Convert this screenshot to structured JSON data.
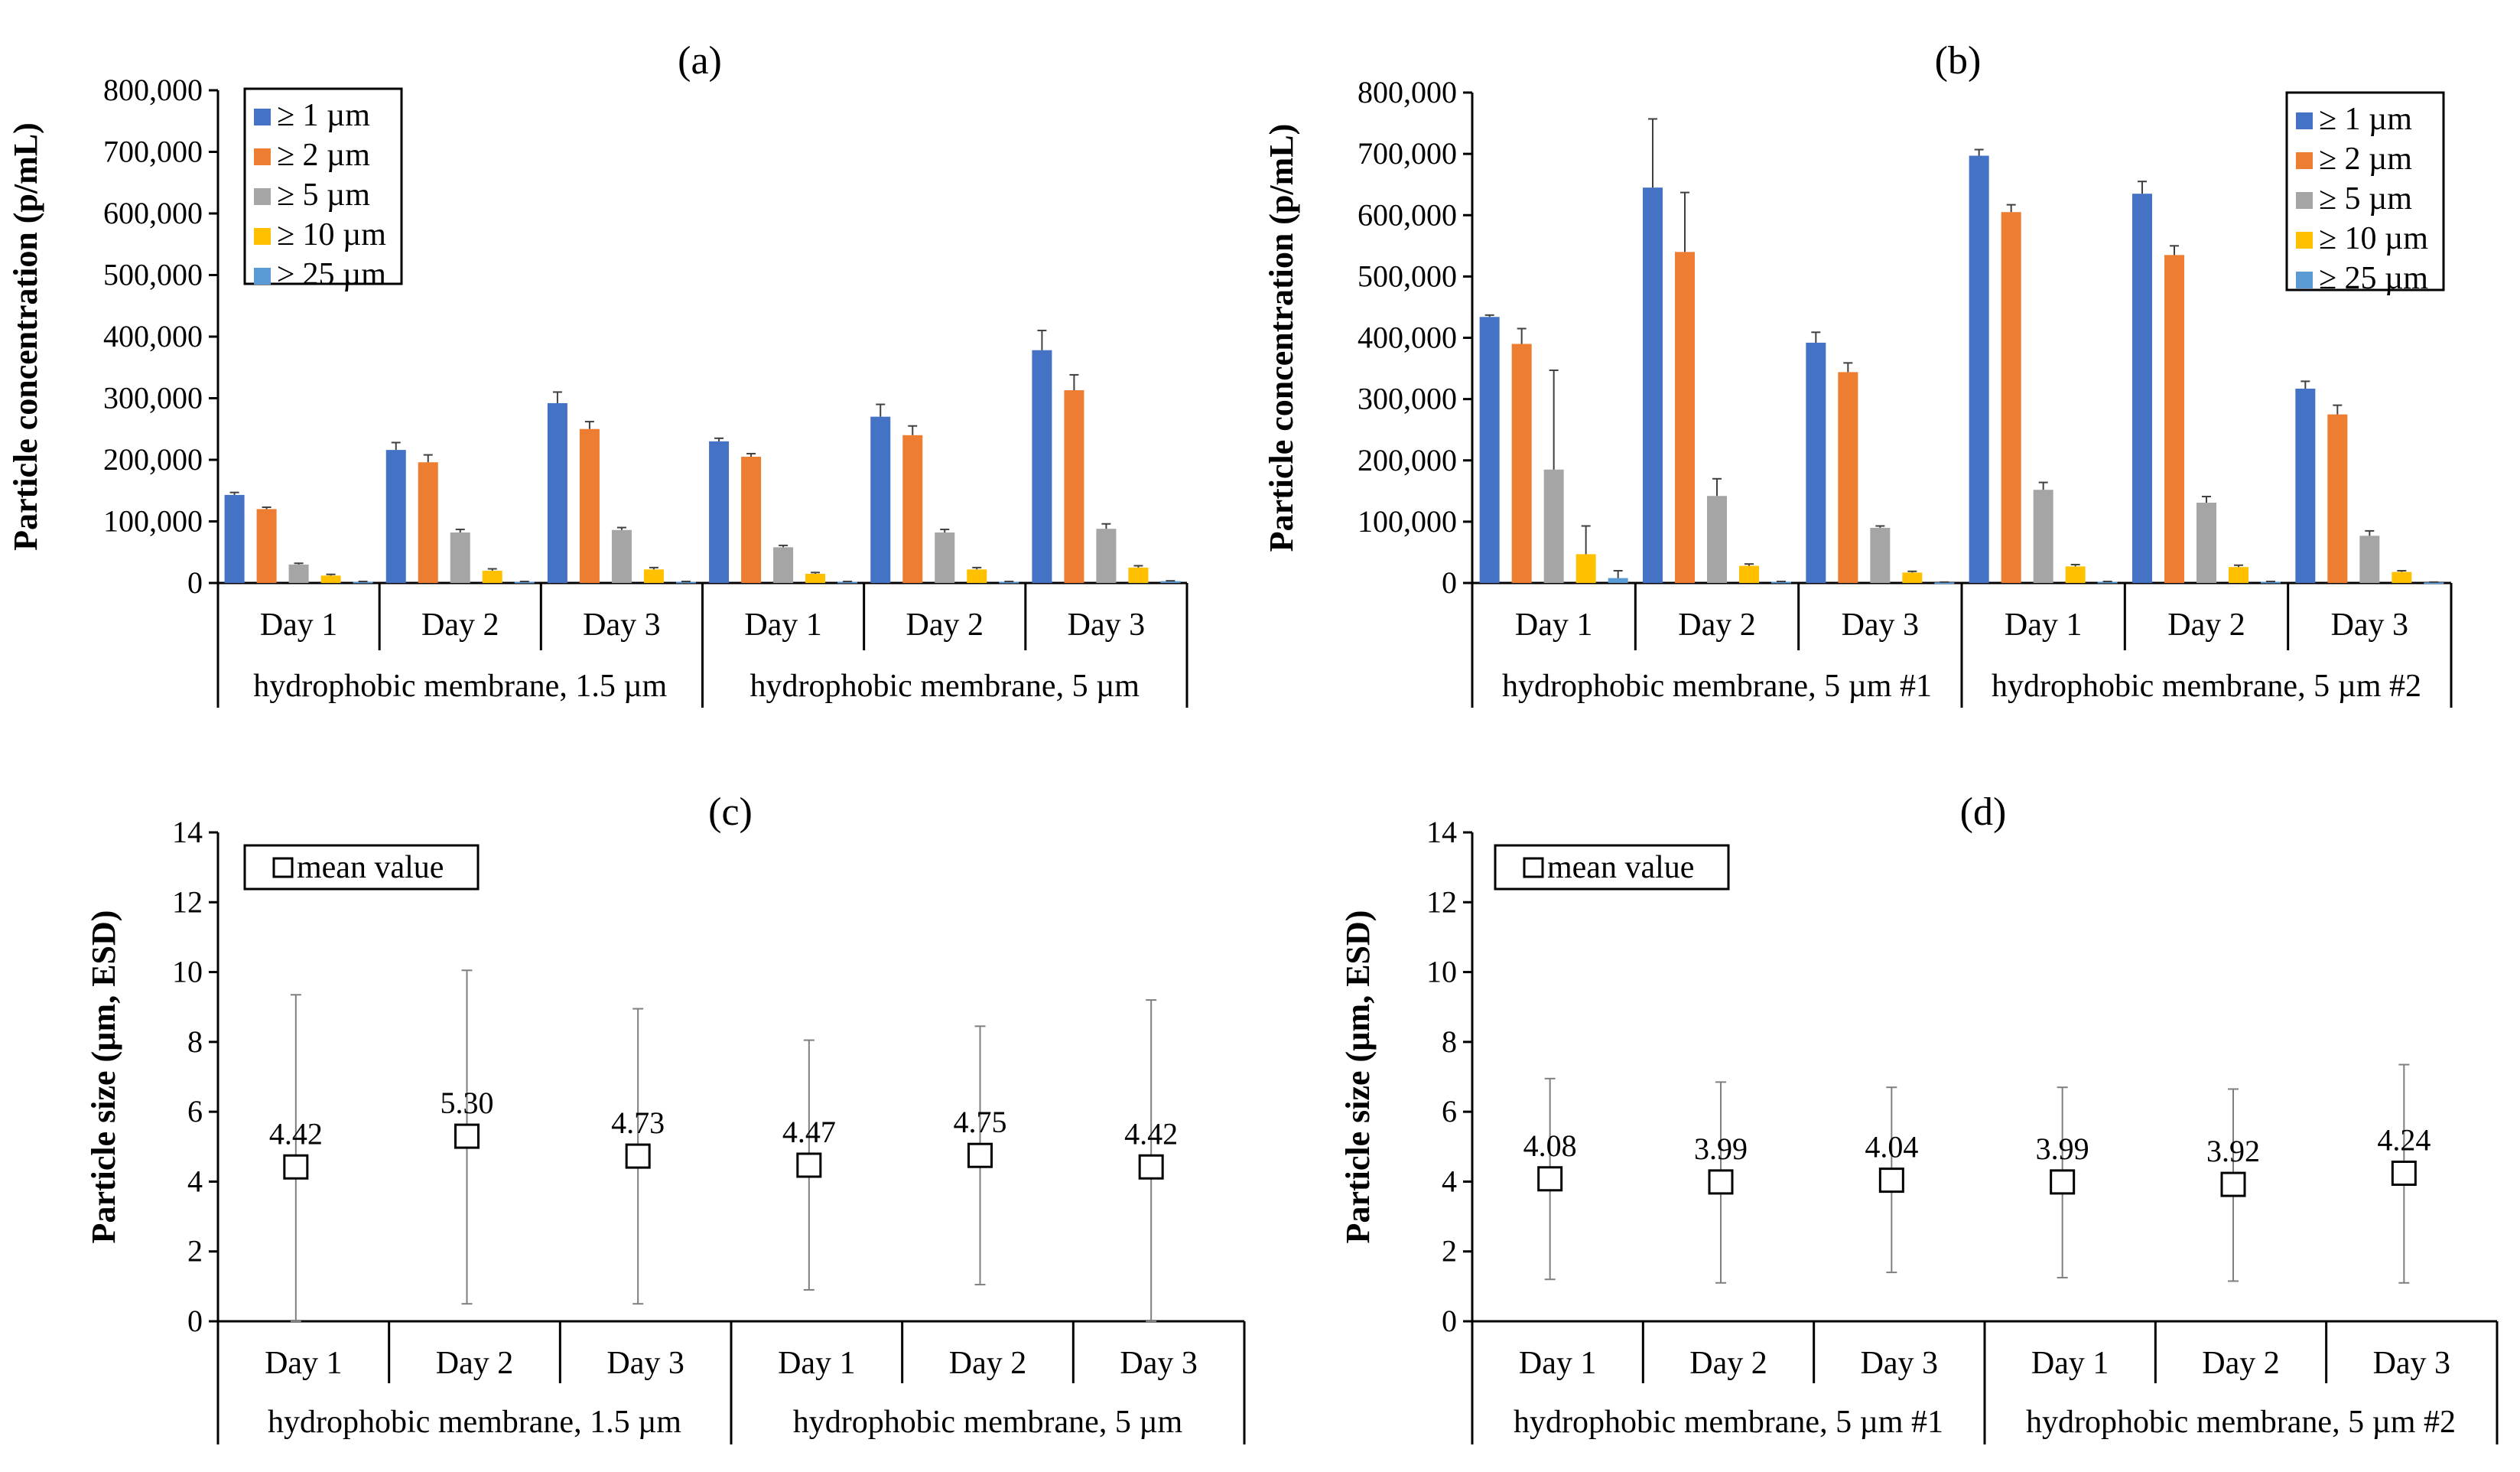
{
  "chart_data": [
    {
      "type": "bar",
      "panel": "(a)",
      "ylabel": "Particle concentration (p/mL)",
      "ylim": [
        0,
        800000
      ],
      "yticks": [
        "0",
        "100,000",
        "200,000",
        "300,000",
        "400,000",
        "500,000",
        "600,000",
        "700,000",
        "800,000"
      ],
      "categories": [
        "Day 1",
        "Day 2",
        "Day 3",
        "Day 1",
        "Day 2",
        "Day 3"
      ],
      "groups": [
        "hydrophobic membrane, 1.5 µm",
        "hydrophobic membrane, 5  µm"
      ],
      "legend": [
        "≥ 1 µm",
        "≥ 2 µm",
        "≥ 5 µm",
        "≥ 10 µm",
        "≥ 25 µm"
      ],
      "legend_position": "top-left",
      "series": [
        {
          "name": "≥ 1 µm",
          "color": "#4472C4",
          "values": [
            143000,
            216000,
            292000,
            230000,
            270000,
            378000
          ],
          "errors": [
            4000,
            12000,
            18000,
            5000,
            20000,
            32000
          ]
        },
        {
          "name": "≥ 2 µm",
          "color": "#ED7D31",
          "values": [
            120000,
            196000,
            250000,
            205000,
            240000,
            313000
          ],
          "errors": [
            3000,
            12000,
            12000,
            5000,
            15000,
            25000
          ]
        },
        {
          "name": "≥ 5 µm",
          "color": "#A5A5A5",
          "values": [
            30000,
            82000,
            86000,
            58000,
            82000,
            88000
          ],
          "errors": [
            2000,
            5000,
            4000,
            3000,
            5000,
            8000
          ]
        },
        {
          "name": "≥ 10 µm",
          "color": "#FFC000",
          "values": [
            12000,
            20000,
            22000,
            15000,
            22000,
            25000
          ],
          "errors": [
            2000,
            3000,
            3000,
            2000,
            3000,
            3000
          ]
        },
        {
          "name": "≥ 25 µm",
          "color": "#5B9BD5",
          "values": [
            2000,
            2000,
            2000,
            2000,
            2000,
            3000
          ],
          "errors": [
            500,
            500,
            500,
            500,
            500,
            500
          ]
        }
      ]
    },
    {
      "type": "bar",
      "panel": "(b)",
      "ylabel": "Particle concentration (p/mL)",
      "ylim": [
        0,
        800000
      ],
      "yticks": [
        "0",
        "100,000",
        "200,000",
        "300,000",
        "400,000",
        "500,000",
        "600,000",
        "700,000",
        "800,000"
      ],
      "categories": [
        "Day 1",
        "Day 2",
        "Day 3",
        "Day 1",
        "Day 2",
        "Day 3"
      ],
      "groups": [
        "hydrophobic membrane, 5  µm #1",
        "hydrophobic membrane, 5  µm #2"
      ],
      "legend": [
        "≥ 1 µm",
        "≥ 2 µm",
        "≥ 5 µm",
        "≥ 10 µm",
        "≥ 25 µm"
      ],
      "legend_position": "top-right",
      "series": [
        {
          "name": "≥ 1 µm",
          "color": "#4472C4",
          "values": [
            434000,
            645000,
            392000,
            697000,
            635000,
            317000
          ],
          "errors": [
            3000,
            112000,
            17000,
            10000,
            20000,
            12000
          ]
        },
        {
          "name": "≥ 2 µm",
          "color": "#ED7D31",
          "values": [
            390000,
            540000,
            344000,
            605000,
            535000,
            275000
          ],
          "errors": [
            25000,
            97000,
            15000,
            12000,
            15000,
            15000
          ]
        },
        {
          "name": "≥ 5 µm",
          "color": "#A5A5A5",
          "values": [
            185000,
            142000,
            90000,
            152000,
            131000,
            77000
          ],
          "errors": [
            162000,
            28000,
            3000,
            12000,
            10000,
            8000
          ]
        },
        {
          "name": "≥ 10 µm",
          "color": "#FFC000",
          "values": [
            47000,
            28000,
            17000,
            27000,
            26000,
            18000
          ],
          "errors": [
            46000,
            3000,
            2000,
            3000,
            3000,
            2000
          ]
        },
        {
          "name": "≥ 25 µm",
          "color": "#5B9BD5",
          "values": [
            8000,
            2000,
            1000,
            2000,
            2000,
            1000
          ],
          "errors": [
            12000,
            500,
            500,
            500,
            500,
            500
          ]
        }
      ]
    },
    {
      "type": "scatter",
      "panel": "(c)",
      "ylabel": "Particle size (µm, ESD)",
      "ylim": [
        0,
        14
      ],
      "yticks": [
        "0",
        "2",
        "4",
        "6",
        "8",
        "10",
        "12",
        "14"
      ],
      "categories": [
        "Day 1",
        "Day 2",
        "Day 3",
        "Day 1",
        "Day 2",
        "Day 3"
      ],
      "groups": [
        "hydrophobic membrane, 1.5 µm",
        "hydrophobic membrane, 5  µm"
      ],
      "legend": [
        "mean value"
      ],
      "legend_position": "top-left",
      "values": [
        4.42,
        5.3,
        4.73,
        4.47,
        4.75,
        4.42
      ],
      "value_labels": [
        "4.42",
        "5.30",
        "4.73",
        "4.47",
        "4.75",
        "4.42"
      ],
      "err_low": [
        0.0,
        0.5,
        0.5,
        0.9,
        1.05,
        0.0
      ],
      "err_high": [
        9.35,
        10.05,
        8.95,
        8.05,
        8.45,
        9.2
      ]
    },
    {
      "type": "scatter",
      "panel": "(d)",
      "ylabel": "Particle size (µm, ESD)",
      "ylim": [
        0,
        14
      ],
      "yticks": [
        "0",
        "2",
        "4",
        "6",
        "8",
        "10",
        "12",
        "14"
      ],
      "categories": [
        "Day 1",
        "Day 2",
        "Day 3",
        "Day 1",
        "Day 2",
        "Day 3"
      ],
      "groups": [
        "hydrophobic membrane, 5  µm #1",
        "hydrophobic membrane, 5  µm #2"
      ],
      "legend": [
        "mean value"
      ],
      "legend_position": "top-left",
      "values": [
        4.08,
        3.99,
        4.04,
        3.99,
        3.92,
        4.24
      ],
      "value_labels": [
        "4.08",
        "3.99",
        "4.04",
        "3.99",
        "3.92",
        "4.24"
      ],
      "err_low": [
        1.2,
        1.1,
        1.4,
        1.25,
        1.15,
        1.1
      ],
      "err_high": [
        6.95,
        6.85,
        6.7,
        6.7,
        6.65,
        7.35
      ]
    }
  ]
}
